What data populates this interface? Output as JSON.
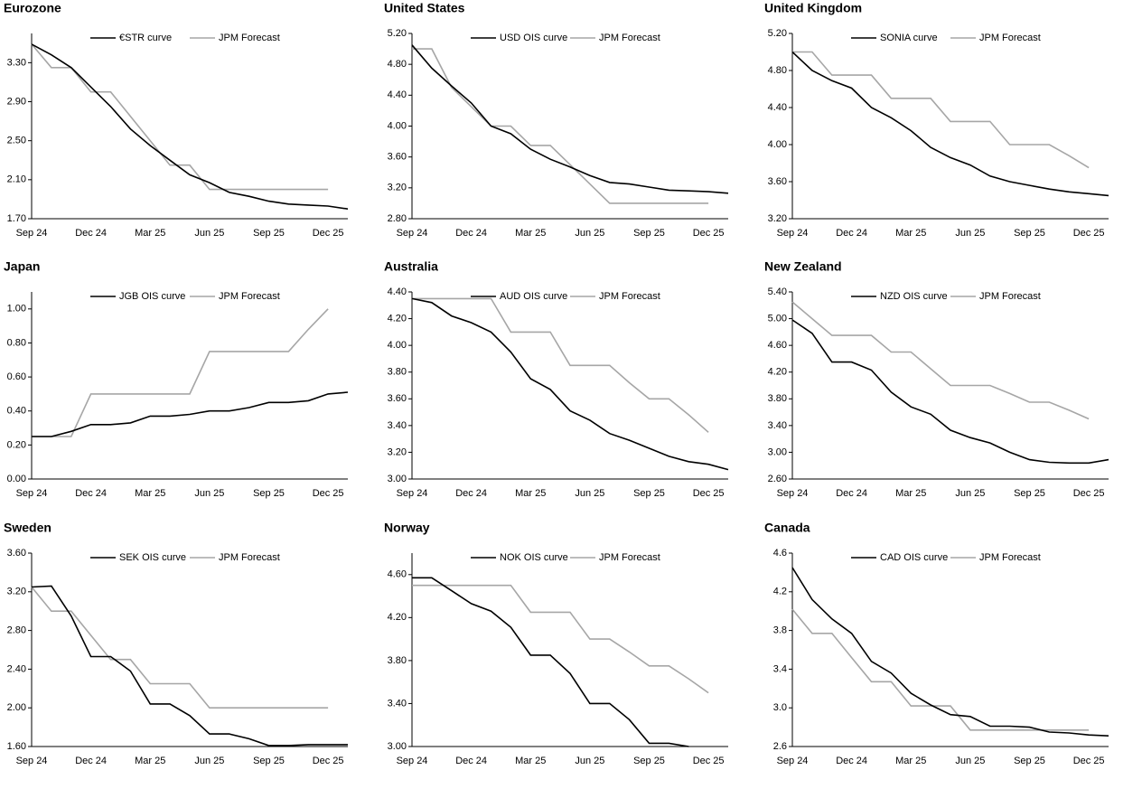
{
  "chart_data": [
    {
      "type": "line",
      "title": "Eurozone",
      "categories": [
        "Sep 24",
        null,
        null,
        "Dec 24",
        null,
        null,
        "Mar 25",
        null,
        null,
        "Jun 25",
        null,
        null,
        "Sep 25",
        null,
        null,
        "Dec 25",
        null
      ],
      "ylim": [
        1.7,
        3.6
      ],
      "yticks": [
        {
          "value": 1.7,
          "label": "1.70"
        },
        {
          "value": 2.1,
          "label": "2.10"
        },
        {
          "value": 2.5,
          "label": "2.50"
        },
        {
          "value": 2.9,
          "label": "2.90"
        },
        {
          "value": 3.3,
          "label": "3.30"
        }
      ],
      "series": [
        {
          "name": "€STR curve",
          "color": "#000000",
          "values": [
            3.49,
            3.38,
            3.25,
            3.05,
            2.85,
            2.62,
            2.45,
            2.3,
            2.15,
            2.07,
            1.97,
            1.93,
            1.88,
            1.85,
            1.84,
            1.83,
            1.8
          ]
        },
        {
          "name": "JPM Forecast",
          "color": "#a6a6a6",
          "values": [
            3.49,
            3.25,
            3.25,
            3.0,
            3.0,
            2.75,
            2.5,
            2.25,
            2.25,
            2.0,
            2.0,
            2.0,
            2.0,
            2.0,
            2.0,
            2.0,
            null
          ]
        }
      ]
    },
    {
      "type": "line",
      "title": "United States",
      "categories": [
        "Sep 24",
        null,
        null,
        "Dec 24",
        null,
        null,
        "Mar 25",
        null,
        null,
        "Jun 25",
        null,
        null,
        "Sep 25",
        null,
        null,
        "Dec 25",
        null
      ],
      "ylim": [
        2.8,
        5.2
      ],
      "yticks": [
        {
          "value": 2.8,
          "label": "2.80"
        },
        {
          "value": 3.2,
          "label": "3.20"
        },
        {
          "value": 3.6,
          "label": "3.60"
        },
        {
          "value": 4.0,
          "label": "4.00"
        },
        {
          "value": 4.4,
          "label": "4.40"
        },
        {
          "value": 4.8,
          "label": "4.80"
        },
        {
          "value": 5.2,
          "label": "5.20"
        }
      ],
      "series": [
        {
          "name": "USD OIS curve",
          "color": "#000000",
          "values": [
            5.05,
            4.75,
            4.52,
            4.3,
            4.0,
            3.9,
            3.7,
            3.57,
            3.47,
            3.36,
            3.27,
            3.25,
            3.21,
            3.17,
            3.16,
            3.15,
            3.13
          ]
        },
        {
          "name": "JPM Forecast",
          "color": "#a6a6a6",
          "values": [
            5.0,
            5.0,
            4.5,
            4.25,
            4.0,
            4.0,
            3.75,
            3.75,
            3.5,
            3.25,
            3.0,
            3.0,
            3.0,
            3.0,
            3.0,
            3.0,
            null
          ]
        }
      ]
    },
    {
      "type": "line",
      "title": "United Kingdom",
      "categories": [
        "Sep 24",
        null,
        null,
        "Dec 24",
        null,
        null,
        "Mar 25",
        null,
        null,
        "Jun 25",
        null,
        null,
        "Sep 25",
        null,
        null,
        "Dec 25",
        null
      ],
      "ylim": [
        3.2,
        5.2
      ],
      "yticks": [
        {
          "value": 3.2,
          "label": "3.20"
        },
        {
          "value": 3.6,
          "label": "3.60"
        },
        {
          "value": 4.0,
          "label": "4.00"
        },
        {
          "value": 4.4,
          "label": "4.40"
        },
        {
          "value": 4.8,
          "label": "4.80"
        },
        {
          "value": 5.2,
          "label": "5.20"
        }
      ],
      "series": [
        {
          "name": "SONIA curve",
          "color": "#000000",
          "values": [
            5.0,
            4.8,
            4.69,
            4.61,
            4.4,
            4.29,
            4.15,
            3.97,
            3.86,
            3.78,
            3.66,
            3.6,
            3.56,
            3.52,
            3.49,
            3.47,
            3.45
          ]
        },
        {
          "name": "JPM Forecast",
          "color": "#a6a6a6",
          "values": [
            5.0,
            5.0,
            4.75,
            4.75,
            4.75,
            4.5,
            4.5,
            4.5,
            4.25,
            4.25,
            4.25,
            4.0,
            4.0,
            4.0,
            3.88,
            3.75,
            null
          ]
        }
      ]
    },
    {
      "type": "line",
      "title": "Japan",
      "categories": [
        "Sep 24",
        null,
        null,
        "Dec 24",
        null,
        null,
        "Mar 25",
        null,
        null,
        "Jun 25",
        null,
        null,
        "Sep 25",
        null,
        null,
        "Dec 25",
        null
      ],
      "ylim": [
        0,
        1.1
      ],
      "yticks": [
        {
          "value": 0,
          "label": "0.00"
        },
        {
          "value": 0.2,
          "label": "0.20"
        },
        {
          "value": 0.4,
          "label": "0.40"
        },
        {
          "value": 0.6,
          "label": "0.60"
        },
        {
          "value": 0.8,
          "label": "0.80"
        },
        {
          "value": 1.0,
          "label": "1.00"
        }
      ],
      "series": [
        {
          "name": "JGB OIS curve",
          "color": "#000000",
          "values": [
            0.25,
            0.25,
            0.28,
            0.32,
            0.32,
            0.33,
            0.37,
            0.37,
            0.38,
            0.4,
            0.4,
            0.42,
            0.45,
            0.45,
            0.46,
            0.5,
            0.51
          ]
        },
        {
          "name": "JPM Forecast",
          "color": "#a6a6a6",
          "values": [
            0.25,
            0.25,
            0.25,
            0.5,
            0.5,
            0.5,
            0.5,
            0.5,
            0.5,
            0.75,
            0.75,
            0.75,
            0.75,
            0.75,
            0.88,
            1.0,
            null
          ]
        }
      ]
    },
    {
      "type": "line",
      "title": "Australia",
      "categories": [
        "Sep 24",
        null,
        null,
        "Dec 24",
        null,
        null,
        "Mar 25",
        null,
        null,
        "Jun 25",
        null,
        null,
        "Sep 25",
        null,
        null,
        "Dec 25",
        null
      ],
      "ylim": [
        3.0,
        4.4
      ],
      "yticks": [
        {
          "value": 3.0,
          "label": "3.00"
        },
        {
          "value": 3.2,
          "label": "3.20"
        },
        {
          "value": 3.4,
          "label": "3.40"
        },
        {
          "value": 3.6,
          "label": "3.60"
        },
        {
          "value": 3.8,
          "label": "3.80"
        },
        {
          "value": 4.0,
          "label": "4.00"
        },
        {
          "value": 4.2,
          "label": "4.20"
        },
        {
          "value": 4.4,
          "label": "4.40"
        }
      ],
      "series": [
        {
          "name": "AUD OIS curve",
          "color": "#000000",
          "values": [
            4.35,
            4.32,
            4.22,
            4.17,
            4.1,
            3.95,
            3.75,
            3.67,
            3.51,
            3.44,
            3.34,
            3.29,
            3.23,
            3.17,
            3.13,
            3.11,
            3.07
          ]
        },
        {
          "name": "JPM Forecast",
          "color": "#a6a6a6",
          "values": [
            4.35,
            4.35,
            4.35,
            4.35,
            4.35,
            4.1,
            4.1,
            4.1,
            3.85,
            3.85,
            3.85,
            3.72,
            3.6,
            3.6,
            3.48,
            3.35,
            null
          ]
        }
      ]
    },
    {
      "type": "line",
      "title": "New Zealand",
      "categories": [
        "Sep 24",
        null,
        null,
        "Dec 24",
        null,
        null,
        "Mar 25",
        null,
        null,
        "Jun 25",
        null,
        null,
        "Sep 25",
        null,
        null,
        "Dec 25",
        null
      ],
      "ylim": [
        2.6,
        5.4
      ],
      "yticks": [
        {
          "value": 2.6,
          "label": "2.60"
        },
        {
          "value": 3.0,
          "label": "3.00"
        },
        {
          "value": 3.4,
          "label": "3.40"
        },
        {
          "value": 3.8,
          "label": "3.80"
        },
        {
          "value": 4.2,
          "label": "4.20"
        },
        {
          "value": 4.6,
          "label": "4.60"
        },
        {
          "value": 5.0,
          "label": "5.00"
        },
        {
          "value": 5.4,
          "label": "5.40"
        }
      ],
      "series": [
        {
          "name": "NZD OIS curve",
          "color": "#000000",
          "values": [
            4.98,
            4.78,
            4.35,
            4.35,
            4.23,
            3.9,
            3.68,
            3.57,
            3.33,
            3.22,
            3.14,
            3.0,
            2.89,
            2.85,
            2.84,
            2.84,
            2.89
          ]
        },
        {
          "name": "JPM Forecast",
          "color": "#a6a6a6",
          "values": [
            5.25,
            5.0,
            4.75,
            4.75,
            4.75,
            4.5,
            4.5,
            4.25,
            4.0,
            4.0,
            4.0,
            3.88,
            3.75,
            3.75,
            3.63,
            3.5,
            null
          ]
        }
      ]
    },
    {
      "type": "line",
      "title": "Sweden",
      "categories": [
        "Sep 24",
        null,
        null,
        "Dec 24",
        null,
        null,
        "Mar 25",
        null,
        null,
        "Jun 25",
        null,
        null,
        "Sep 25",
        null,
        null,
        "Dec 25",
        null
      ],
      "ylim": [
        1.6,
        3.6
      ],
      "yticks": [
        {
          "value": 1.6,
          "label": "1.60"
        },
        {
          "value": 2.0,
          "label": "2.00"
        },
        {
          "value": 2.4,
          "label": "2.40"
        },
        {
          "value": 2.8,
          "label": "2.80"
        },
        {
          "value": 3.2,
          "label": "3.20"
        },
        {
          "value": 3.6,
          "label": "3.60"
        }
      ],
      "series": [
        {
          "name": "SEK OIS curve",
          "color": "#000000",
          "values": [
            3.25,
            3.26,
            2.95,
            2.53,
            2.53,
            2.38,
            2.04,
            2.04,
            1.92,
            1.73,
            1.73,
            1.68,
            1.61,
            1.61,
            1.62,
            1.62,
            1.62
          ]
        },
        {
          "name": "JPM Forecast",
          "color": "#a6a6a6",
          "values": [
            3.25,
            3.0,
            3.0,
            2.75,
            2.5,
            2.5,
            2.25,
            2.25,
            2.25,
            2.0,
            2.0,
            2.0,
            2.0,
            2.0,
            2.0,
            2.0,
            null
          ]
        }
      ]
    },
    {
      "type": "line",
      "title": "Norway",
      "categories": [
        "Sep 24",
        null,
        null,
        "Dec 24",
        null,
        null,
        "Mar 25",
        null,
        null,
        "Jun 25",
        null,
        null,
        "Sep 25",
        null,
        null,
        "Dec 25",
        null
      ],
      "ylim": [
        3.0,
        4.8
      ],
      "yticks": [
        {
          "value": 3.0,
          "label": "3.00"
        },
        {
          "value": 3.4,
          "label": "3.40"
        },
        {
          "value": 3.8,
          "label": "3.80"
        },
        {
          "value": 4.2,
          "label": "4.20"
        },
        {
          "value": 4.6,
          "label": "4.60"
        }
      ],
      "series": [
        {
          "name": "NOK OIS curve",
          "color": "#000000",
          "values": [
            4.57,
            4.57,
            4.45,
            4.33,
            4.26,
            4.11,
            3.85,
            3.85,
            3.68,
            3.4,
            3.4,
            3.25,
            3.03,
            3.03,
            3.0,
            null,
            null
          ]
        },
        {
          "name": "JPM Forecast",
          "color": "#a6a6a6",
          "values": [
            4.5,
            4.5,
            4.5,
            4.5,
            4.5,
            4.5,
            4.25,
            4.25,
            4.25,
            4.0,
            4.0,
            3.88,
            3.75,
            3.75,
            3.63,
            3.5,
            null
          ]
        }
      ]
    },
    {
      "type": "line",
      "title": "Canada",
      "categories": [
        "Sep 24",
        null,
        null,
        "Dec 24",
        null,
        null,
        "Mar 25",
        null,
        null,
        "Jun 25",
        null,
        null,
        "Sep 25",
        null,
        null,
        "Dec 25",
        null
      ],
      "ylim": [
        2.6,
        4.6
      ],
      "yticks": [
        2.6,
        {
          "value": 3.0,
          "label": "3.0"
        },
        3.4,
        3.8,
        4.2,
        4.6
      ],
      "series": [
        {
          "name": "CAD OIS curve",
          "color": "#000000",
          "values": [
            4.45,
            4.12,
            3.92,
            3.77,
            3.48,
            3.36,
            3.15,
            3.03,
            2.93,
            2.91,
            2.81,
            2.81,
            2.8,
            2.75,
            2.74,
            2.72,
            2.71
          ]
        },
        {
          "name": "JPM Forecast",
          "color": "#a6a6a6",
          "values": [
            4.02,
            3.77,
            3.77,
            3.52,
            3.27,
            3.27,
            3.02,
            3.02,
            3.02,
            2.77,
            2.77,
            2.77,
            2.77,
            2.77,
            2.77,
            2.77,
            null
          ]
        }
      ]
    }
  ]
}
